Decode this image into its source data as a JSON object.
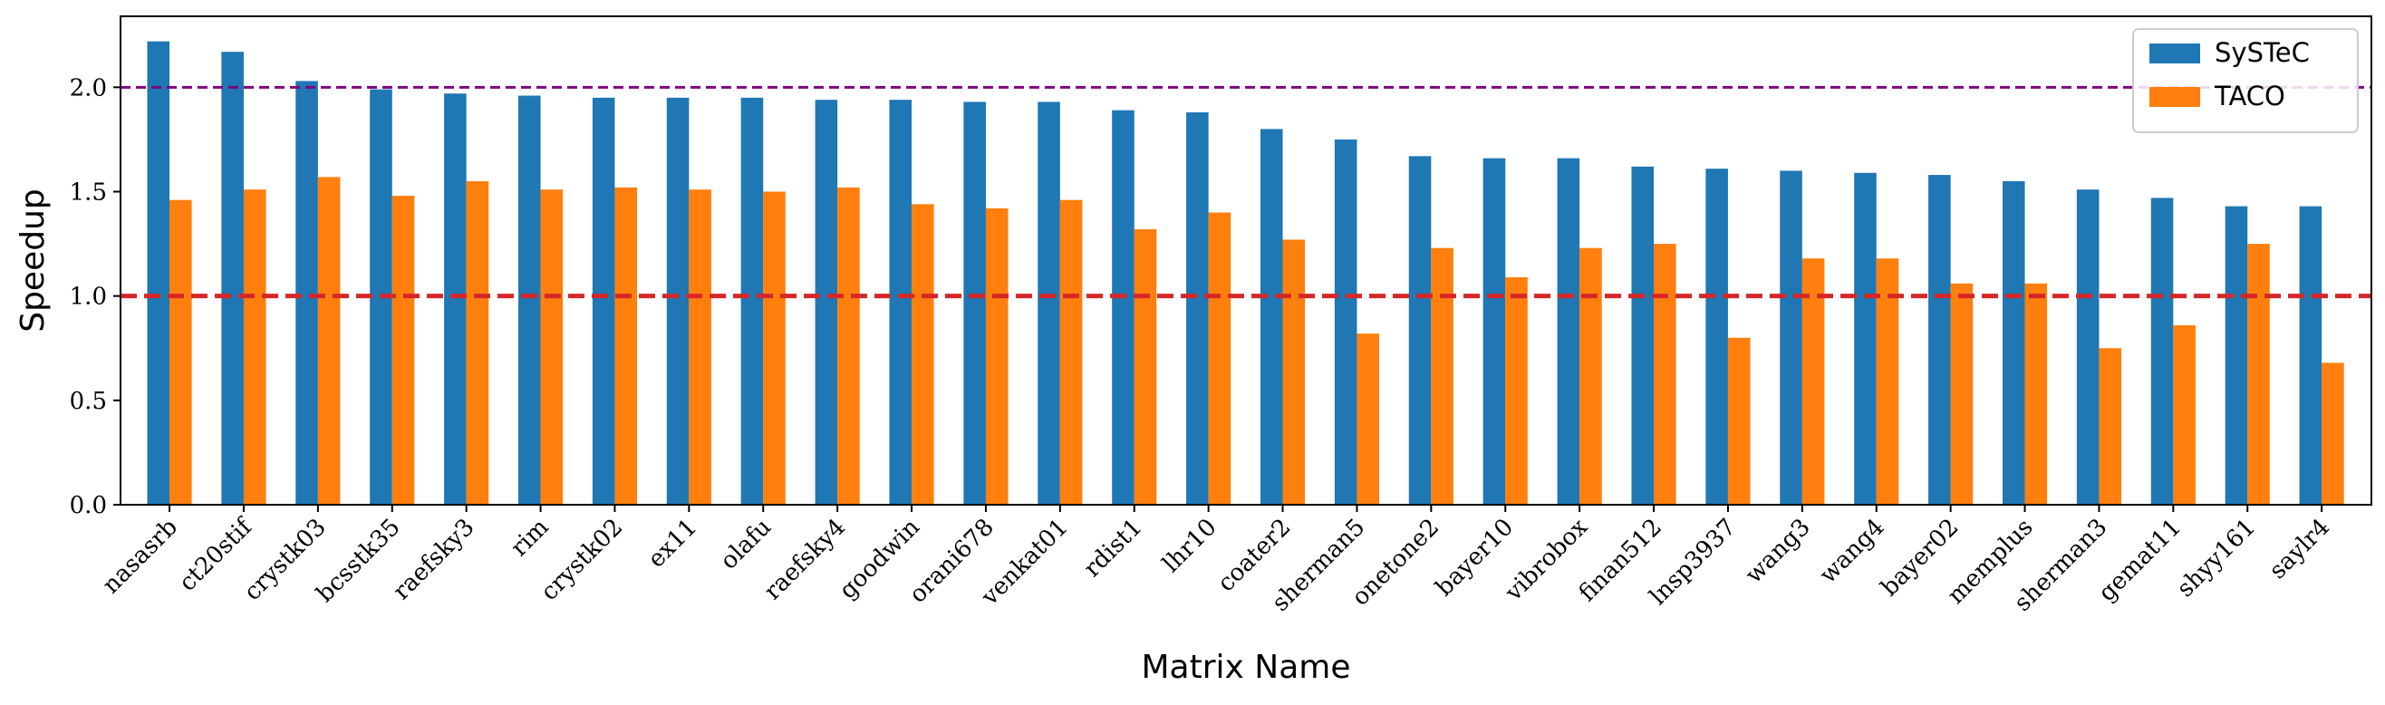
{
  "chart_data": {
    "type": "bar",
    "title": "",
    "xlabel": "Matrix Name",
    "ylabel": "Speedup",
    "ylim": [
      0,
      2.34
    ],
    "yticks": [
      0.0,
      0.5,
      1.0,
      1.5,
      2.0
    ],
    "ytick_labels": [
      "0.0",
      "0.5",
      "1.0",
      "1.5",
      "2.0"
    ],
    "grid": false,
    "legend_position": "top-right",
    "categories": [
      "nasasrb",
      "ct20stif",
      "crystk03",
      "bcsstk35",
      "raefsky3",
      "rim",
      "crystk02",
      "ex11",
      "olafu",
      "raefsky4",
      "goodwin",
      "orani678",
      "venkat01",
      "rdist1",
      "lhr10",
      "coater2",
      "sherman5",
      "onetone2",
      "bayer10",
      "vibrobox",
      "finan512",
      "lnsp3937",
      "wang3",
      "wang4",
      "bayer02",
      "memplus",
      "sherman3",
      "gemat11",
      "shyy161",
      "saylr4"
    ],
    "series": [
      {
        "name": "SySTeC",
        "color": "#1f77b4",
        "values": [
          2.22,
          2.17,
          2.03,
          1.99,
          1.97,
          1.96,
          1.95,
          1.95,
          1.95,
          1.94,
          1.94,
          1.93,
          1.93,
          1.89,
          1.88,
          1.8,
          1.75,
          1.67,
          1.66,
          1.66,
          1.62,
          1.61,
          1.6,
          1.59,
          1.58,
          1.55,
          1.51,
          1.47,
          1.43,
          1.43
        ]
      },
      {
        "name": "TACO",
        "color": "#ff7f0e",
        "values": [
          1.46,
          1.51,
          1.57,
          1.48,
          1.55,
          1.51,
          1.52,
          1.51,
          1.5,
          1.52,
          1.44,
          1.42,
          1.46,
          1.32,
          1.4,
          1.27,
          0.82,
          1.23,
          1.09,
          1.23,
          1.25,
          0.8,
          1.18,
          1.18,
          1.06,
          1.06,
          0.75,
          0.86,
          1.25,
          0.68
        ]
      }
    ],
    "reference_lines": [
      {
        "value": 2.0,
        "color": "#800080",
        "style": "dashed"
      },
      {
        "value": 1.0,
        "color": "#d62728",
        "style": "dashed"
      }
    ]
  }
}
